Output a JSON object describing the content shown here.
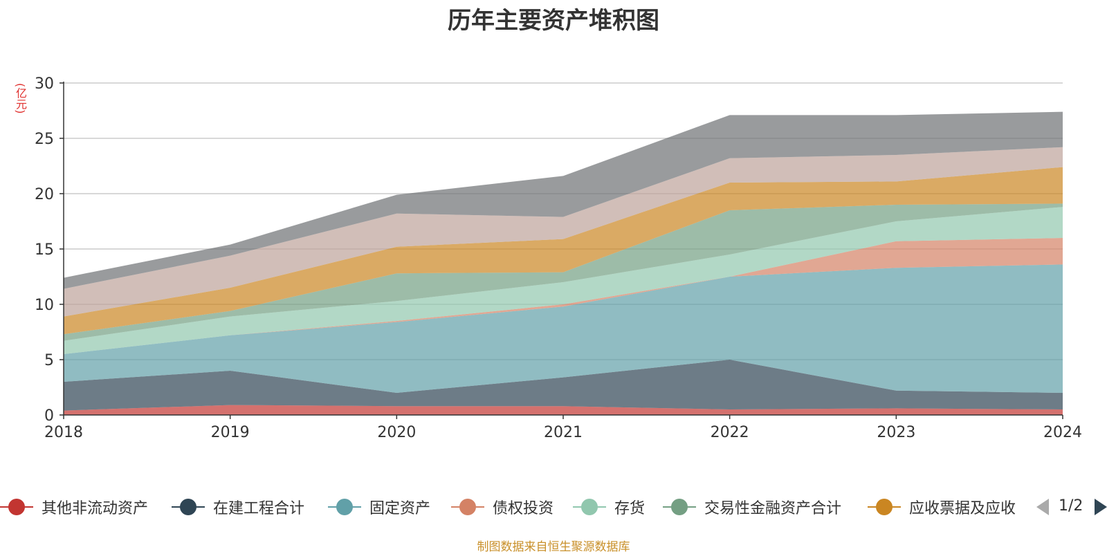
{
  "chart_data": {
    "type": "area",
    "stacked": true,
    "title": "历年主要资产堆积图",
    "unit_label": "(亿元)",
    "x": [
      "2018",
      "2019",
      "2020",
      "2021",
      "2022",
      "2023",
      "2024"
    ],
    "ylim": [
      0,
      30
    ],
    "yticks": [
      0,
      5,
      10,
      15,
      20,
      25,
      30
    ],
    "grid": true,
    "legend_position": "bottom",
    "series": [
      {
        "name": "其他非流动资产",
        "color": "#c23531",
        "values": [
          0.4,
          0.9,
          0.8,
          0.8,
          0.5,
          0.6,
          0.5
        ]
      },
      {
        "name": "在建工程合计",
        "color": "#2f4554",
        "values": [
          2.6,
          3.1,
          1.2,
          2.6,
          4.5,
          1.6,
          1.5
        ]
      },
      {
        "name": "固定资产",
        "color": "#61a0a8",
        "values": [
          2.5,
          3.2,
          6.4,
          6.4,
          7.5,
          11.1,
          11.6
        ]
      },
      {
        "name": "债权投资",
        "color": "#d48265",
        "values": [
          0.0,
          0.0,
          0.1,
          0.2,
          0.0,
          2.4,
          2.4
        ]
      },
      {
        "name": "存货",
        "color": "#91c7ae",
        "values": [
          1.2,
          1.7,
          1.8,
          2.0,
          2.0,
          1.8,
          2.8
        ]
      },
      {
        "name": "交易性金融资产合计",
        "color": "#749f83",
        "values": [
          0.6,
          0.5,
          2.5,
          0.9,
          4.0,
          1.5,
          0.3
        ]
      },
      {
        "name": "应收票据及应收",
        "color": "#ca8622",
        "values": [
          1.6,
          2.1,
          2.4,
          3.0,
          2.5,
          2.1,
          3.3
        ]
      },
      {
        "name": "",
        "color": "#bda29a",
        "values": [
          2.5,
          2.9,
          3.0,
          2.0,
          2.2,
          2.4,
          1.8
        ]
      },
      {
        "name": "",
        "color": "#6e7074",
        "values": [
          1.0,
          1.0,
          1.7,
          3.7,
          3.9,
          3.6,
          3.2
        ]
      }
    ]
  },
  "legend": {
    "items": [
      {
        "label": "其他非流动资产",
        "color": "#c23531"
      },
      {
        "label": "在建工程合计",
        "color": "#2f4554"
      },
      {
        "label": "固定资产",
        "color": "#61a0a8"
      },
      {
        "label": "债权投资",
        "color": "#d48265"
      },
      {
        "label": "存货",
        "color": "#91c7ae"
      },
      {
        "label": "交易性金融资产合计",
        "color": "#749f83"
      },
      {
        "label": "应收票据及应收",
        "color": "#ca8622"
      }
    ],
    "page_indicator": "1/2"
  },
  "source_note": "制图数据来自恒生聚源数据库"
}
